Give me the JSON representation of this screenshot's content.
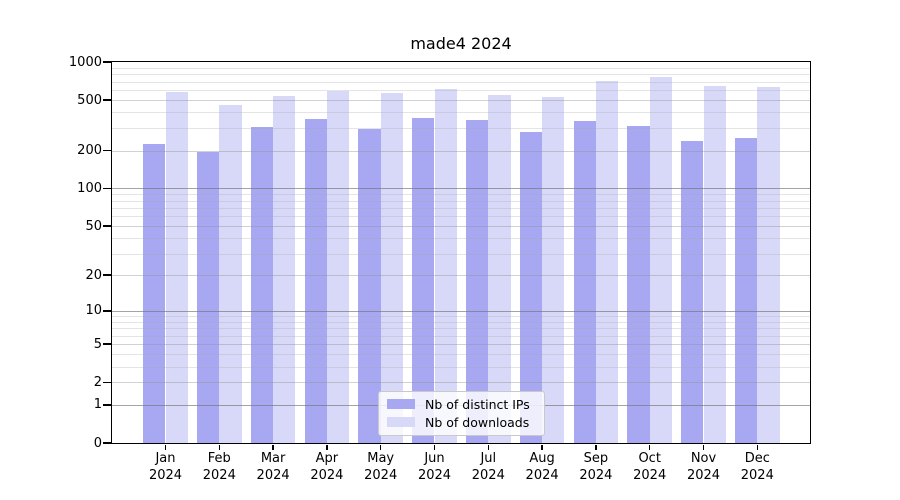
{
  "chart_data": {
    "type": "bar",
    "title": "made4 2024",
    "categories": [
      "Jan 2024",
      "Feb 2024",
      "Mar 2024",
      "Apr 2024",
      "May 2024",
      "Jun 2024",
      "Jul 2024",
      "Aug 2024",
      "Sep 2024",
      "Oct 2024",
      "Nov 2024",
      "Dec 2024"
    ],
    "series": [
      {
        "name": "Nb of distinct IPs",
        "color": "#a8a8f2",
        "values": [
          225,
          195,
          305,
          355,
          295,
          360,
          350,
          280,
          345,
          310,
          240,
          250
        ]
      },
      {
        "name": "Nb of downloads",
        "color": "#d8d8f8",
        "values": [
          575,
          455,
          535,
          590,
          565,
          615,
          550,
          530,
          705,
          760,
          650,
          630
        ]
      }
    ],
    "y_ticks": [
      0,
      1,
      2,
      5,
      10,
      20,
      50,
      100,
      200,
      500,
      1000
    ],
    "ylim": [
      0,
      1000
    ],
    "yscale": "log10(value+1)",
    "grid": "major and minor horizontal gridlines",
    "legend_position": "bottom-center",
    "axis_color": "#000000",
    "background_color": "#ffffff"
  }
}
